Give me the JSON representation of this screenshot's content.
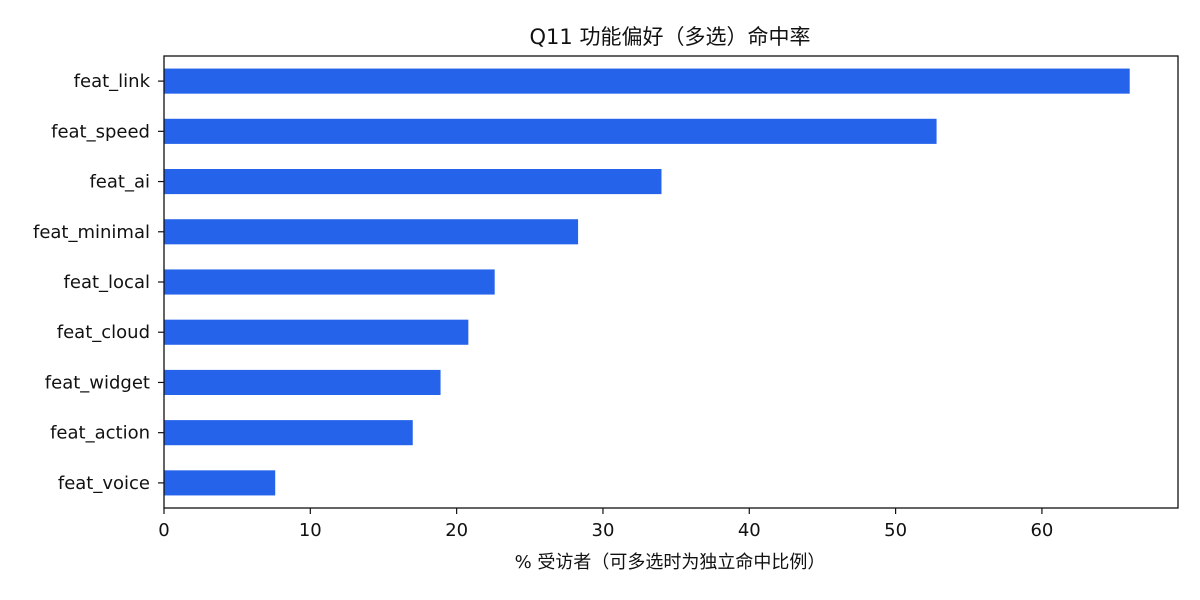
{
  "chart_data": {
    "type": "bar",
    "orientation": "horizontal",
    "title": "Q11 功能偏好（多选）命中率",
    "xlabel": "% 受访者（可多选时为独立命中比例）",
    "ylabel": "",
    "categories": [
      "feat_link",
      "feat_speed",
      "feat_ai",
      "feat_minimal",
      "feat_local",
      "feat_cloud",
      "feat_widget",
      "feat_action",
      "feat_voice"
    ],
    "values": [
      66.0,
      52.8,
      34.0,
      28.3,
      22.6,
      20.8,
      18.9,
      17.0,
      7.6
    ],
    "xlim": [
      0,
      69.3
    ],
    "xticks": [
      0,
      10,
      20,
      30,
      40,
      50,
      60
    ],
    "grid": false,
    "legend": "none",
    "bar_color": "#2563EB"
  }
}
